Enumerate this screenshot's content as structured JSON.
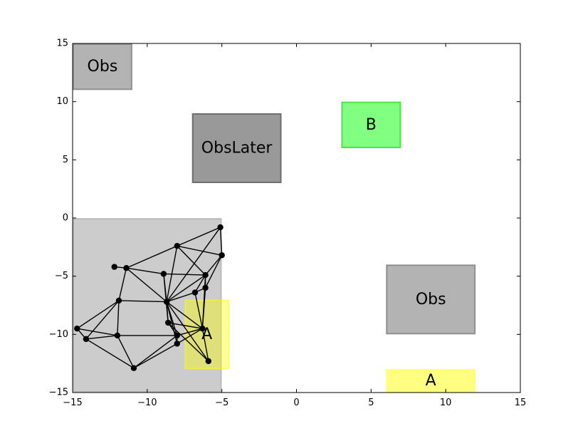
{
  "chart_data": {
    "type": "scatter",
    "xlim": [
      -15,
      15
    ],
    "ylim": [
      -15,
      15
    ],
    "xticks": [
      -15,
      -10,
      -5,
      0,
      5,
      10,
      15
    ],
    "yticks": [
      -15,
      -10,
      -5,
      0,
      5,
      10,
      15
    ],
    "xtick_labels": [
      "−15",
      "−10",
      "−5",
      "0",
      "5",
      "10",
      "15"
    ],
    "ytick_labels": [
      "−15",
      "−10",
      "−5",
      "0",
      "5",
      "10",
      "15"
    ],
    "grid": false,
    "regions": [
      {
        "label": "",
        "x0": -15,
        "x1": -5,
        "y0": -15,
        "y1": 0,
        "fill": "#999999",
        "stroke": "#999999",
        "fill_opacity": 0.5,
        "stroke_opacity": 0.5
      },
      {
        "label": "Obs",
        "x0": -15,
        "x1": -11,
        "y0": 11,
        "y1": 15,
        "fill": "#b3b3b3",
        "stroke": "#8f8f8f",
        "fill_opacity": 1,
        "stroke_opacity": 1
      },
      {
        "label": "ObsLater",
        "x0": -7,
        "x1": -1,
        "y0": 3,
        "y1": 9,
        "fill": "#999999",
        "stroke": "#6e6e6e",
        "fill_opacity": 1,
        "stroke_opacity": 1
      },
      {
        "label": "B",
        "x0": 3,
        "x1": 7,
        "y0": 6,
        "y1": 10,
        "fill": "#80ff80",
        "stroke": "#4ce64c",
        "fill_opacity": 1,
        "stroke_opacity": 1
      },
      {
        "label": "Obs",
        "x0": 6,
        "x1": 12,
        "y0": -10,
        "y1": -4,
        "fill": "#b3b3b3",
        "stroke": "#8f8f8f",
        "fill_opacity": 1,
        "stroke_opacity": 1
      },
      {
        "label": "A",
        "x0": 6,
        "x1": 12,
        "y0": -15,
        "y1": -13,
        "fill": "#ffff80",
        "stroke": "#ffff66",
        "fill_opacity": 1,
        "stroke_opacity": 1
      },
      {
        "label": "A",
        "x0": -7.5,
        "x1": -4.5,
        "y0": -13,
        "y1": -7,
        "fill": "#ffff00",
        "stroke": "#ffff00",
        "fill_opacity": 0.4,
        "stroke_opacity": 0.5
      }
    ],
    "nodes": [
      {
        "x": -5.1,
        "y": -0.8
      },
      {
        "x": -8.0,
        "y": -2.4
      },
      {
        "x": -5.0,
        "y": -3.2
      },
      {
        "x": -12.2,
        "y": -4.2
      },
      {
        "x": -11.4,
        "y": -4.3
      },
      {
        "x": -8.9,
        "y": -4.8
      },
      {
        "x": -6.1,
        "y": -4.9
      },
      {
        "x": -6.1,
        "y": -6.0
      },
      {
        "x": -6.8,
        "y": -6.4
      },
      {
        "x": -11.9,
        "y": -7.1
      },
      {
        "x": -8.7,
        "y": -7.2
      },
      {
        "x": -8.6,
        "y": -9.0
      },
      {
        "x": -14.7,
        "y": -9.5
      },
      {
        "x": -6.3,
        "y": -9.5
      },
      {
        "x": -12.0,
        "y": -10.1
      },
      {
        "x": -8.0,
        "y": -10.1
      },
      {
        "x": -14.1,
        "y": -10.4
      },
      {
        "x": -8.0,
        "y": -10.8
      },
      {
        "x": -5.9,
        "y": -12.3
      },
      {
        "x": -10.9,
        "y": -12.9
      }
    ],
    "edges": [
      [
        0,
        2
      ],
      [
        0,
        1
      ],
      [
        0,
        10
      ],
      [
        1,
        2
      ],
      [
        1,
        4
      ],
      [
        1,
        6
      ],
      [
        1,
        10
      ],
      [
        2,
        6
      ],
      [
        2,
        7
      ],
      [
        3,
        4
      ],
      [
        4,
        9
      ],
      [
        4,
        5
      ],
      [
        4,
        10
      ],
      [
        5,
        6
      ],
      [
        5,
        10
      ],
      [
        5,
        11
      ],
      [
        6,
        10
      ],
      [
        6,
        8
      ],
      [
        6,
        7
      ],
      [
        6,
        13
      ],
      [
        7,
        8
      ],
      [
        7,
        13
      ],
      [
        8,
        10
      ],
      [
        8,
        13
      ],
      [
        9,
        10
      ],
      [
        9,
        12
      ],
      [
        9,
        14
      ],
      [
        9,
        16
      ],
      [
        10,
        11
      ],
      [
        10,
        13
      ],
      [
        10,
        15
      ],
      [
        10,
        17
      ],
      [
        10,
        18
      ],
      [
        11,
        15
      ],
      [
        11,
        13
      ],
      [
        11,
        18
      ],
      [
        12,
        16
      ],
      [
        12,
        14
      ],
      [
        13,
        15
      ],
      [
        13,
        17
      ],
      [
        13,
        18
      ],
      [
        14,
        16
      ],
      [
        14,
        15
      ],
      [
        14,
        19
      ],
      [
        15,
        17
      ],
      [
        15,
        19
      ],
      [
        16,
        19
      ],
      [
        17,
        19
      ]
    ]
  }
}
